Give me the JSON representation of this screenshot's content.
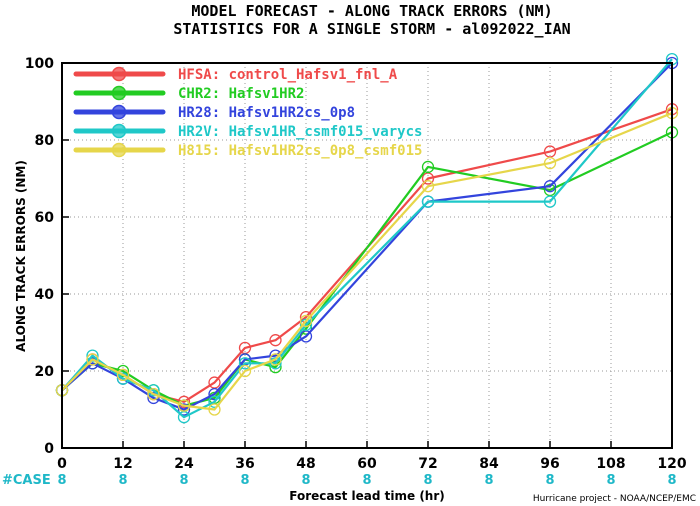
{
  "chart_data": {
    "type": "line",
    "title": "MODEL FORECAST - ALONG TRACK ERRORS (NM)",
    "subtitle": "STATISTICS FOR A SINGLE STORM - al092022_IAN",
    "xlabel": "Forecast lead time (hr)",
    "ylabel": "ALONG TRACK ERRORS (NM)",
    "xlim": [
      0,
      120
    ],
    "ylim": [
      0,
      100
    ],
    "x_ticks": [
      0,
      12,
      24,
      36,
      48,
      60,
      72,
      84,
      96,
      108,
      120
    ],
    "x_tick_labels": [
      "0",
      "12",
      "24",
      "36",
      "48",
      "60",
      "72",
      "84",
      "96",
      "108",
      "120"
    ],
    "y_ticks": [
      0,
      20,
      40,
      60,
      80,
      100
    ],
    "y_tick_labels": [
      "0",
      "20",
      "40",
      "60",
      "80",
      "100"
    ],
    "grid": true,
    "legend_position": "top-left",
    "x": [
      0,
      6,
      12,
      18,
      24,
      30,
      36,
      42,
      48,
      72,
      96,
      120
    ],
    "series": [
      {
        "name": "HFSA: control_Hafsv1_fnl_A",
        "color": "#ef4a4a",
        "values": [
          15,
          23,
          19,
          14,
          12,
          17,
          26,
          28,
          34,
          70,
          77,
          88
        ]
      },
      {
        "name": "CHR2: Hafsv1HR2",
        "color": "#22cc22",
        "values": [
          15,
          22,
          20,
          15,
          11,
          13,
          23,
          21,
          31,
          73,
          67,
          82
        ]
      },
      {
        "name": "HR28: Hafsv1HR2cs_0p8",
        "color": "#3344dd",
        "values": [
          15,
          22,
          18,
          13,
          10,
          14,
          23,
          24,
          29,
          64,
          68,
          100
        ]
      },
      {
        "name": "HR2V: Hafsv1HR_csmf015_varycs",
        "color": "#1fc8c8",
        "values": [
          15,
          24,
          18,
          15,
          8,
          12,
          22,
          22,
          32,
          64,
          64,
          101
        ]
      },
      {
        "name": "H815: Hafsv1HR2cs_0p8_csmf015",
        "color": "#e6d64a",
        "values": [
          15,
          23,
          19,
          14,
          11,
          10,
          20,
          23,
          33,
          68,
          74,
          87
        ]
      }
    ],
    "case_label": "#CASE",
    "case_counts": [
      "8",
      "8",
      "8",
      "8",
      "8",
      "8",
      "8",
      "8",
      "8",
      "8",
      "8"
    ],
    "credit": "Hurricane project - NOAA/NCEP/EMC"
  }
}
